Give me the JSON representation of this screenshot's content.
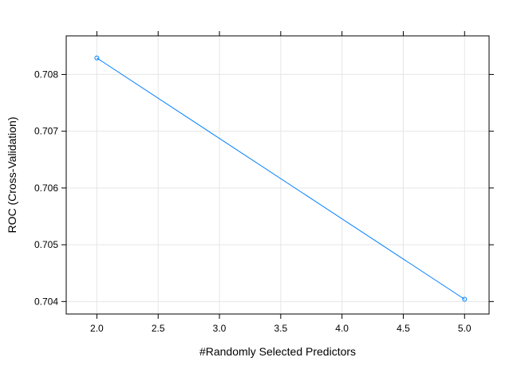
{
  "chart_data": {
    "type": "line",
    "xlabel": "#Randomly Selected Predictors",
    "ylabel": "ROC (Cross-Validation)",
    "x_ticks": [
      "2.0",
      "2.5",
      "3.0",
      "3.5",
      "4.0",
      "4.5",
      "5.0"
    ],
    "y_ticks": [
      "0.704",
      "0.705",
      "0.706",
      "0.707",
      "0.708"
    ],
    "xlim": [
      1.75,
      5.2
    ],
    "ylim": [
      0.70378,
      0.70868
    ],
    "grid": true,
    "series": [
      {
        "color": "#0080ff",
        "marker": "open-circle",
        "points": [
          {
            "x": 2.0,
            "y": 0.70829
          },
          {
            "x": 5.0,
            "y": 0.70404
          }
        ]
      }
    ]
  }
}
